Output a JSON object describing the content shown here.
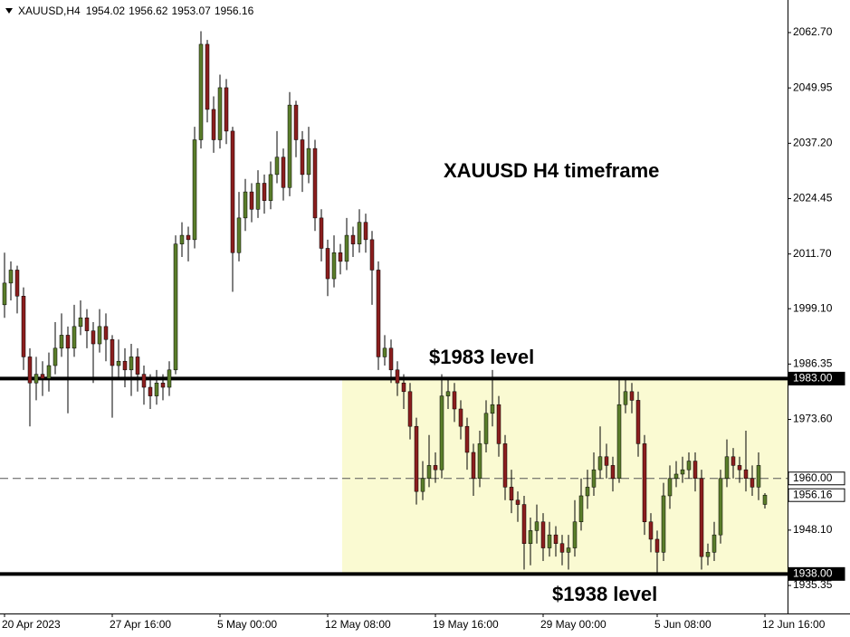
{
  "chart_data": {
    "type": "candlestick",
    "symbol": "XAUUSD,H4",
    "annotations": [
      "XAUUSD H4 timeframe",
      "$1983 level",
      "$1938 level"
    ],
    "up_color": "#5a7d2a",
    "down_color": "#8b1e1e",
    "zone_color": "#fafad2",
    "ylim": [
      1928.9,
      2070.2
    ],
    "yticks": [
      {
        "value": 2062.7,
        "label": "2062.70"
      },
      {
        "value": 2049.95,
        "label": "2049.95"
      },
      {
        "value": 2037.2,
        "label": "2037.20"
      },
      {
        "value": 2024.45,
        "label": "2024.45"
      },
      {
        "value": 2011.7,
        "label": "2011.70"
      },
      {
        "value": 1999.1,
        "label": "1999.10"
      },
      {
        "value": 1986.35,
        "label": "1986.35"
      },
      {
        "value": 1973.6,
        "label": "1973.60"
      },
      {
        "value": 1948.1,
        "label": "1948.10"
      },
      {
        "value": 1935.35,
        "label": "1935.35"
      }
    ],
    "levels": [
      {
        "value": 1983,
        "label": "1983.00",
        "style": "solid"
      },
      {
        "value": 1960,
        "label": "1960.00",
        "style": "dashed"
      },
      {
        "value": 1938,
        "label": "1938.00",
        "style": "solid"
      }
    ],
    "current_price": 1956.16,
    "categories": [
      "20 Apr 2023",
      null,
      null,
      null,
      null,
      null,
      null,
      null,
      null,
      null,
      null,
      null,
      null,
      null,
      null,
      null,
      null,
      "27 Apr 16:00",
      null,
      null,
      null,
      null,
      null,
      null,
      null,
      null,
      null,
      null,
      null,
      null,
      null,
      null,
      null,
      null,
      "5 May 00:00",
      null,
      null,
      null,
      null,
      null,
      null,
      null,
      null,
      null,
      null,
      null,
      null,
      null,
      null,
      null,
      null,
      "12 May 08:00",
      null,
      null,
      null,
      null,
      null,
      null,
      null,
      null,
      null,
      null,
      null,
      null,
      null,
      null,
      null,
      null,
      "19 May 16:00",
      null,
      null,
      null,
      null,
      null,
      null,
      null,
      null,
      null,
      null,
      null,
      null,
      null,
      null,
      null,
      null,
      "29 May 00:00",
      null,
      null,
      null,
      null,
      null,
      null,
      null,
      null,
      null,
      null,
      null,
      null,
      null,
      null,
      null,
      null,
      null,
      "5 Jun 08:00",
      null,
      null,
      null,
      null,
      null,
      null,
      null,
      null,
      null,
      null,
      null,
      null,
      null,
      null,
      null,
      null,
      "12 Jun 16:00"
    ],
    "ohlc": {
      "open": [
        2000,
        2005,
        2008,
        2002,
        1988,
        1982,
        1984,
        1983,
        1986,
        1990,
        1993,
        1990,
        1995,
        1997,
        1994,
        1991,
        1995,
        1992,
        1986,
        1987,
        1985,
        1988,
        1984,
        1981,
        1979,
        1982,
        1981,
        1985,
        2014,
        2016,
        2015,
        2038,
        2060,
        2045,
        2038,
        2050,
        2040,
        2012,
        2020,
        2026,
        2022,
        2028,
        2024,
        2030,
        2034,
        2027,
        2046,
        2038,
        2030,
        2036,
        2020,
        2013,
        2006,
        2012,
        2010,
        2016,
        2014,
        2019,
        2015,
        2008,
        1988,
        1990,
        1985,
        1982,
        1980,
        1972,
        1957,
        1960,
        1963,
        1962,
        1979,
        1980,
        1976,
        1972,
        1966,
        1960,
        1968,
        1975,
        1977,
        1968,
        1958,
        1955,
        1954,
        1945,
        1948,
        1950,
        1944,
        1947,
        1945,
        1943,
        1944,
        1950,
        1956,
        1958,
        1962,
        1965,
        1963,
        1960,
        1977,
        1980,
        1978,
        1968,
        1950,
        1946,
        1943,
        1956,
        1960,
        1961,
        1962,
        1964,
        1960,
        1942,
        1943,
        1947,
        1960,
        1965,
        1963,
        1962,
        1960,
        1958,
        1954.02
      ],
      "high": [
        2012,
        2010,
        2009,
        2004,
        1990,
        1988,
        1987,
        1989,
        1996,
        1998,
        1995,
        2000,
        2001,
        1999,
        1996,
        1999,
        1998,
        1993,
        1992,
        1990,
        1991,
        1990,
        1986,
        1984,
        1985,
        1984,
        1987,
        2016,
        2019,
        2018,
        2041,
        2063,
        2061,
        2048,
        2053,
        2052,
        2041,
        2026,
        2029,
        2028,
        2031,
        2030,
        2033,
        2040,
        2036,
        2049,
        2047,
        2040,
        2041,
        2038,
        2022,
        2015,
        2016,
        2014,
        2020,
        2018,
        2022,
        2021,
        2017,
        2010,
        1993,
        1992,
        1987,
        1984,
        1982,
        1974,
        1964,
        1970,
        1966,
        1984,
        1983,
        1982,
        1978,
        1974,
        1968,
        1971,
        1978,
        1985,
        1979,
        1970,
        1962,
        1957,
        1956,
        1951,
        1954,
        1952,
        1950,
        1949,
        1947,
        1947,
        1955,
        1960,
        1962,
        1966,
        1972,
        1968,
        1965,
        1983,
        1983,
        1982,
        1980,
        1970,
        1952,
        1948,
        1959,
        1963,
        1964,
        1965,
        1966,
        1966,
        1962,
        1945,
        1950,
        1962,
        1969,
        1967,
        1965,
        1971,
        1963,
        1966,
        1956.62
      ],
      "low": [
        1997,
        2001,
        1998,
        1985,
        1972,
        1978,
        1979,
        1980,
        1984,
        1988,
        1975,
        1988,
        1993,
        1990,
        1982,
        1989,
        1987,
        1974,
        1983,
        1981,
        1979,
        1980,
        1977,
        1976,
        1977,
        1978,
        1979,
        1984,
        2011,
        2010,
        2013,
        2036,
        2042,
        2035,
        2036,
        2037,
        2003,
        2010,
        2017,
        2019,
        2020,
        2021,
        2022,
        2028,
        2024,
        2025,
        2034,
        2026,
        2028,
        2017,
        2010,
        2002,
        2004,
        2007,
        2008,
        2011,
        2012,
        2012,
        2000,
        1985,
        1986,
        1982,
        1979,
        1976,
        1969,
        1954,
        1955,
        1958,
        1959,
        1960,
        1976,
        1973,
        1969,
        1962,
        1956,
        1958,
        1966,
        1972,
        1965,
        1955,
        1952,
        1950,
        1939,
        1940,
        1945,
        1941,
        1942,
        1942,
        1940,
        1939,
        1942,
        1948,
        1953,
        1956,
        1960,
        1960,
        1957,
        1959,
        1975,
        1975,
        1965,
        1947,
        1943,
        1938,
        1941,
        1953,
        1958,
        1959,
        1960,
        1957,
        1939,
        1940,
        1941,
        1945,
        1958,
        1960,
        1959,
        1957,
        1956,
        1955,
        1953.07
      ],
      "close": [
        2005,
        2008,
        2002,
        1988,
        1982,
        1984,
        1983,
        1986,
        1990,
        1993,
        1990,
        1995,
        1997,
        1994,
        1991,
        1995,
        1992,
        1986,
        1987,
        1985,
        1988,
        1984,
        1981,
        1979,
        1982,
        1981,
        1985,
        2014,
        2016,
        2015,
        2038,
        2060,
        2045,
        2038,
        2050,
        2040,
        2012,
        2020,
        2026,
        2022,
        2028,
        2024,
        2030,
        2034,
        2027,
        2046,
        2038,
        2030,
        2036,
        2020,
        2013,
        2006,
        2012,
        2010,
        2016,
        2014,
        2019,
        2015,
        2008,
        1988,
        1990,
        1985,
        1982,
        1980,
        1972,
        1957,
        1960,
        1963,
        1962,
        1979,
        1980,
        1976,
        1972,
        1966,
        1960,
        1968,
        1975,
        1977,
        1968,
        1958,
        1955,
        1954,
        1945,
        1948,
        1950,
        1944,
        1947,
        1945,
        1943,
        1944,
        1950,
        1956,
        1958,
        1962,
        1965,
        1963,
        1960,
        1977,
        1980,
        1978,
        1968,
        1950,
        1946,
        1943,
        1956,
        1960,
        1961,
        1962,
        1964,
        1960,
        1942,
        1943,
        1947,
        1960,
        1965,
        1963,
        1962,
        1960,
        1958,
        1963,
        1956.16
      ]
    }
  }
}
